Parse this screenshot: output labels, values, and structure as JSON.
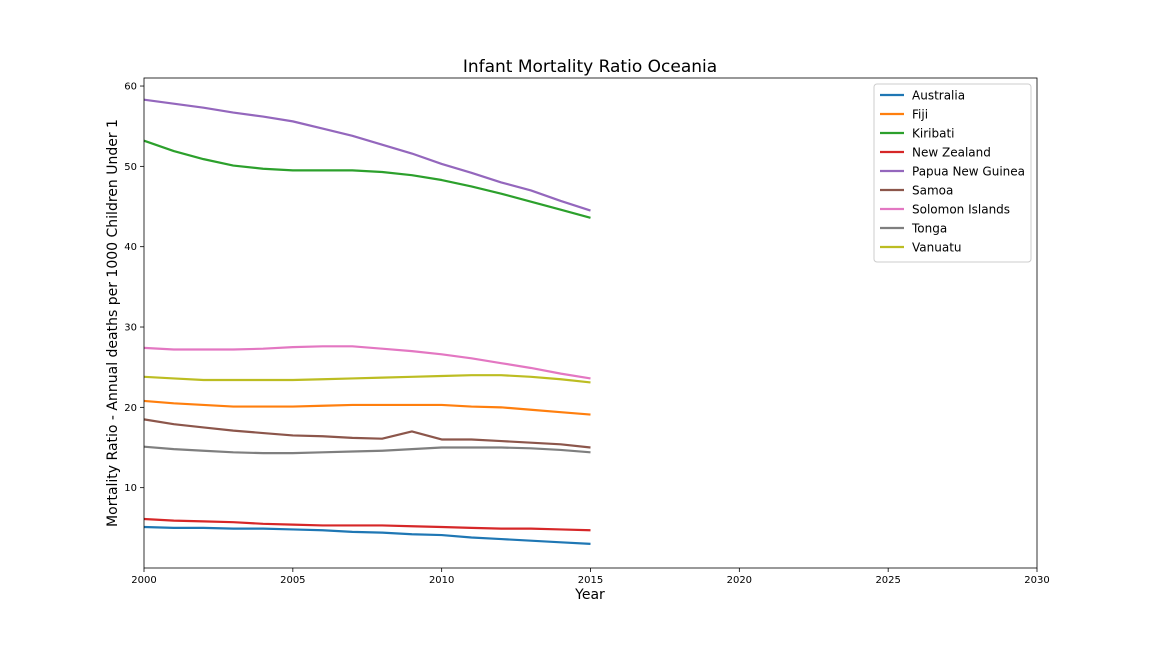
{
  "chart_data": {
    "type": "line",
    "title": "Infant Mortality Ratio Oceania",
    "xlabel": "Year",
    "ylabel": "Mortality Ratio - Annual deaths per 1000 Children Under 1",
    "xlim": [
      2000,
      2030
    ],
    "ylim": [
      0,
      61
    ],
    "xticks": [
      2000,
      2005,
      2010,
      2015,
      2020,
      2025,
      2030
    ],
    "yticks": [
      10,
      20,
      30,
      40,
      50,
      60
    ],
    "grid": false,
    "legend_position": "top-right",
    "x": [
      2000,
      2001,
      2002,
      2003,
      2004,
      2005,
      2006,
      2007,
      2008,
      2009,
      2010,
      2011,
      2012,
      2013,
      2014,
      2015
    ],
    "series": [
      {
        "name": "Australia",
        "color": "#1f77b4",
        "values": [
          5.1,
          5.0,
          5.0,
          4.9,
          4.9,
          4.8,
          4.7,
          4.5,
          4.4,
          4.2,
          4.1,
          3.8,
          3.6,
          3.4,
          3.2,
          3.0
        ]
      },
      {
        "name": "Fiji",
        "color": "#ff7f0e",
        "values": [
          20.8,
          20.5,
          20.3,
          20.1,
          20.1,
          20.1,
          20.2,
          20.3,
          20.3,
          20.3,
          20.3,
          20.1,
          20.0,
          19.7,
          19.4,
          19.1
        ]
      },
      {
        "name": "Kiribati",
        "color": "#2ca02c",
        "values": [
          53.2,
          51.9,
          50.9,
          50.1,
          49.7,
          49.5,
          49.5,
          49.5,
          49.3,
          48.9,
          48.3,
          47.5,
          46.6,
          45.6,
          44.6,
          43.6
        ]
      },
      {
        "name": "New Zealand",
        "color": "#d62728",
        "values": [
          6.1,
          5.9,
          5.8,
          5.7,
          5.5,
          5.4,
          5.3,
          5.3,
          5.3,
          5.2,
          5.1,
          5.0,
          4.9,
          4.9,
          4.8,
          4.7
        ]
      },
      {
        "name": "Papua New Guinea",
        "color": "#9467bd",
        "values": [
          58.3,
          57.8,
          57.3,
          56.7,
          56.2,
          55.6,
          54.7,
          53.8,
          52.7,
          51.6,
          50.3,
          49.2,
          48.0,
          47.0,
          45.7,
          44.5
        ]
      },
      {
        "name": "Samoa",
        "color": "#8c564b",
        "values": [
          18.5,
          17.9,
          17.5,
          17.1,
          16.8,
          16.5,
          16.4,
          16.2,
          16.1,
          17.0,
          16.0,
          16.0,
          15.8,
          15.6,
          15.4,
          15.0
        ]
      },
      {
        "name": "Solomon Islands",
        "color": "#e377c2",
        "values": [
          27.4,
          27.2,
          27.2,
          27.2,
          27.3,
          27.5,
          27.6,
          27.6,
          27.3,
          27.0,
          26.6,
          26.1,
          25.5,
          24.9,
          24.2,
          23.6
        ]
      },
      {
        "name": "Tonga",
        "color": "#7f7f7f",
        "values": [
          15.1,
          14.8,
          14.6,
          14.4,
          14.3,
          14.3,
          14.4,
          14.5,
          14.6,
          14.8,
          15.0,
          15.0,
          15.0,
          14.9,
          14.7,
          14.4
        ]
      },
      {
        "name": "Vanuatu",
        "color": "#bcbd22",
        "values": [
          23.8,
          23.6,
          23.4,
          23.4,
          23.4,
          23.4,
          23.5,
          23.6,
          23.7,
          23.8,
          23.9,
          24.0,
          24.0,
          23.8,
          23.5,
          23.1
        ]
      }
    ]
  }
}
